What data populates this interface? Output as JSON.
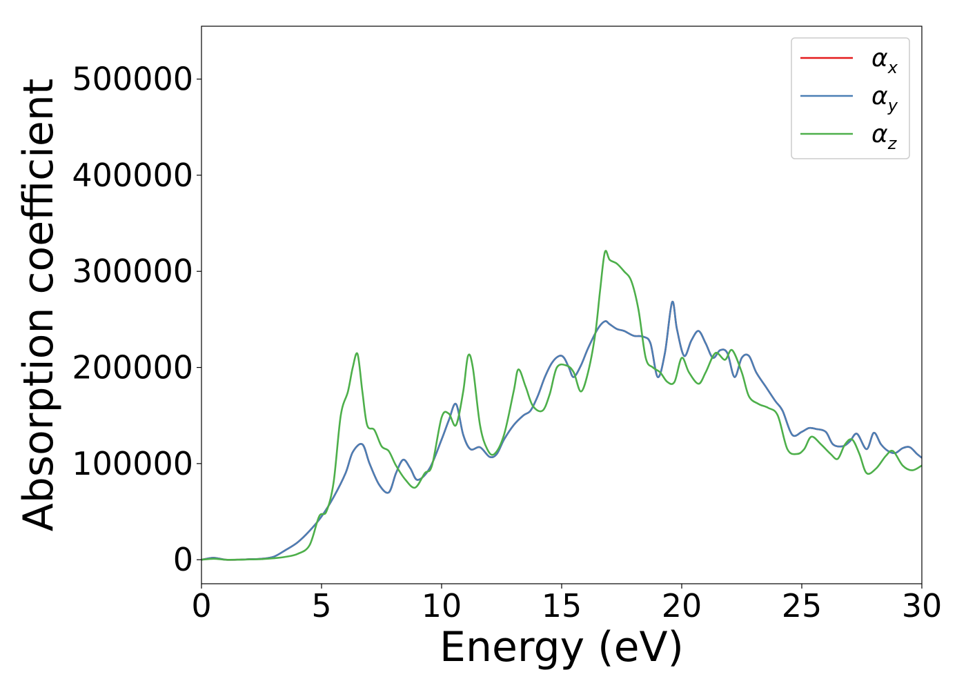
{
  "chart_data": {
    "type": "line",
    "title": "",
    "xlabel": "Energy (eV)",
    "ylabel": "Absorption coefficient",
    "xlim": [
      0,
      30
    ],
    "ylim": [
      -25000,
      555000
    ],
    "xticks": [
      0,
      5,
      10,
      15,
      20,
      25,
      30
    ],
    "xtick_labels": [
      "0",
      "5",
      "10",
      "15",
      "20",
      "25",
      "30"
    ],
    "yticks": [
      0,
      100000,
      200000,
      300000,
      400000,
      500000
    ],
    "ytick_labels": [
      "0",
      "100000",
      "200000",
      "300000",
      "400000",
      "500000"
    ],
    "grid": false,
    "legend_position": "top-right",
    "series": [
      {
        "name": "α_x",
        "legend_symbol": "α",
        "legend_subscript": "x",
        "color": "#e41a1c",
        "x": [
          0,
          0.5,
          1,
          1.5,
          2,
          2.5,
          3,
          3.5,
          4,
          4.5,
          5,
          5.5,
          6,
          6.3,
          6.7,
          7,
          7.4,
          7.8,
          8.1,
          8.4,
          8.7,
          9,
          9.5,
          10,
          10.3,
          10.6,
          10.9,
          11.2,
          11.6,
          12,
          12.3,
          12.6,
          13,
          13.4,
          13.7,
          14,
          14.3,
          14.6,
          14.9,
          15.1,
          15.3,
          15.5,
          15.8,
          16.1,
          16.5,
          16.8,
          17,
          17.3,
          17.6,
          18,
          18.4,
          18.7,
          19,
          19.3,
          19.6,
          19.8,
          20.1,
          20.4,
          20.7,
          21,
          21.3,
          21.6,
          21.9,
          22.2,
          22.5,
          22.8,
          23.1,
          23.5,
          23.9,
          24.2,
          24.6,
          25,
          25.3,
          25.6,
          26,
          26.3,
          26.7,
          27,
          27.3,
          27.7,
          28,
          28.3,
          28.6,
          28.9,
          29.2,
          29.5,
          29.8,
          30
        ],
        "y": [
          0,
          2000,
          0,
          0,
          500,
          1000,
          3000,
          10000,
          18000,
          30000,
          45000,
          65000,
          90000,
          112000,
          120000,
          100000,
          78000,
          70000,
          90000,
          104000,
          95000,
          83000,
          95000,
          125000,
          145000,
          162000,
          130000,
          115000,
          117000,
          107000,
          110000,
          125000,
          140000,
          150000,
          155000,
          170000,
          190000,
          205000,
          212000,
          210000,
          200000,
          190000,
          202000,
          220000,
          240000,
          248000,
          245000,
          240000,
          238000,
          233000,
          232000,
          225000,
          190000,
          215000,
          268000,
          240000,
          212000,
          228000,
          238000,
          225000,
          210000,
          218000,
          215000,
          190000,
          210000,
          212000,
          195000,
          180000,
          165000,
          155000,
          130000,
          133000,
          137000,
          136000,
          133000,
          120000,
          118000,
          123000,
          131000,
          115000,
          132000,
          120000,
          113000,
          111000,
          116000,
          117000,
          110000,
          106000
        ]
      },
      {
        "name": "α_y",
        "legend_symbol": "α",
        "legend_subscript": "y",
        "color": "#4a7fb5",
        "x": [
          0,
          0.5,
          1,
          1.5,
          2,
          2.5,
          3,
          3.5,
          4,
          4.5,
          5,
          5.5,
          6,
          6.3,
          6.7,
          7,
          7.4,
          7.8,
          8.1,
          8.4,
          8.7,
          9,
          9.5,
          10,
          10.3,
          10.6,
          10.9,
          11.2,
          11.6,
          12,
          12.3,
          12.6,
          13,
          13.4,
          13.7,
          14,
          14.3,
          14.6,
          14.9,
          15.1,
          15.3,
          15.5,
          15.8,
          16.1,
          16.5,
          16.8,
          17,
          17.3,
          17.6,
          18,
          18.4,
          18.7,
          19,
          19.3,
          19.6,
          19.8,
          20.1,
          20.4,
          20.7,
          21,
          21.3,
          21.6,
          21.9,
          22.2,
          22.5,
          22.8,
          23.1,
          23.5,
          23.9,
          24.2,
          24.6,
          25,
          25.3,
          25.6,
          26,
          26.3,
          26.7,
          27,
          27.3,
          27.7,
          28,
          28.3,
          28.6,
          28.9,
          29.2,
          29.5,
          29.8,
          30
        ],
        "y": [
          0,
          2000,
          0,
          0,
          500,
          1000,
          3000,
          10000,
          18000,
          30000,
          45000,
          65000,
          90000,
          112000,
          120000,
          100000,
          78000,
          70000,
          90000,
          104000,
          95000,
          83000,
          95000,
          125000,
          145000,
          162000,
          130000,
          115000,
          117000,
          107000,
          110000,
          125000,
          140000,
          150000,
          155000,
          170000,
          190000,
          205000,
          212000,
          210000,
          200000,
          190000,
          202000,
          220000,
          240000,
          248000,
          245000,
          240000,
          238000,
          233000,
          232000,
          225000,
          190000,
          215000,
          268000,
          240000,
          212000,
          228000,
          238000,
          225000,
          210000,
          218000,
          215000,
          190000,
          210000,
          212000,
          195000,
          180000,
          165000,
          155000,
          130000,
          133000,
          137000,
          136000,
          133000,
          120000,
          118000,
          123000,
          131000,
          115000,
          132000,
          120000,
          113000,
          111000,
          116000,
          117000,
          110000,
          106000
        ]
      },
      {
        "name": "α_z",
        "legend_symbol": "α",
        "legend_subscript": "z",
        "color": "#4daf4a",
        "x": [
          0,
          0.5,
          1,
          1.5,
          2,
          2.5,
          3,
          3.5,
          4,
          4.5,
          4.9,
          5.2,
          5.5,
          5.8,
          6.1,
          6.3,
          6.5,
          6.7,
          6.9,
          7.2,
          7.5,
          7.8,
          8.1,
          8.5,
          8.9,
          9.3,
          9.6,
          10,
          10.3,
          10.6,
          10.9,
          11.1,
          11.3,
          11.6,
          11.9,
          12.2,
          12.6,
          13,
          13.2,
          13.5,
          13.8,
          14.2,
          14.5,
          14.8,
          15.2,
          15.5,
          15.8,
          16.1,
          16.4,
          16.6,
          16.8,
          17,
          17.3,
          17.6,
          17.9,
          18.2,
          18.5,
          18.8,
          19.1,
          19.4,
          19.7,
          20,
          20.3,
          20.7,
          21,
          21.4,
          21.8,
          22.1,
          22.5,
          22.8,
          23.2,
          23.6,
          24,
          24.4,
          24.8,
          25.1,
          25.4,
          25.8,
          26.2,
          26.5,
          26.8,
          27.1,
          27.4,
          27.7,
          28.1,
          28.5,
          28.8,
          29.2,
          29.6,
          30
        ],
        "y": [
          0,
          1000,
          0,
          0,
          300,
          600,
          1500,
          3000,
          6000,
          15000,
          45000,
          50000,
          80000,
          150000,
          175000,
          200000,
          214000,
          175000,
          140000,
          135000,
          118000,
          113000,
          98000,
          83000,
          75000,
          90000,
          98000,
          148000,
          152000,
          140000,
          175000,
          212000,
          200000,
          140000,
          115000,
          110000,
          130000,
          175000,
          198000,
          180000,
          160000,
          155000,
          172000,
          200000,
          202000,
          195000,
          175000,
          195000,
          235000,
          280000,
          320000,
          312000,
          308000,
          300000,
          290000,
          260000,
          210000,
          200000,
          195000,
          185000,
          185000,
          210000,
          195000,
          183000,
          195000,
          215000,
          208000,
          218000,
          195000,
          170000,
          162000,
          158000,
          150000,
          115000,
          110000,
          115000,
          128000,
          120000,
          110000,
          105000,
          120000,
          125000,
          110000,
          90000,
          95000,
          108000,
          113000,
          98000,
          93000,
          98000
        ]
      }
    ]
  }
}
